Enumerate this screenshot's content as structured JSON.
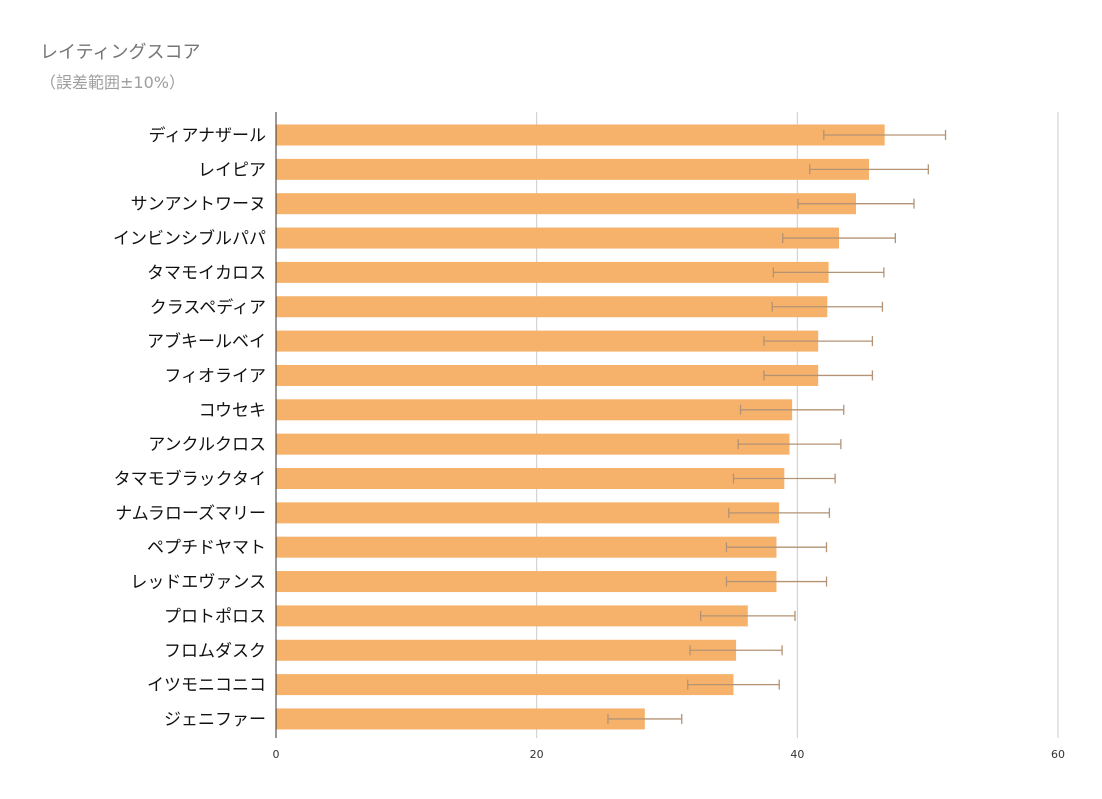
{
  "chart_data": {
    "type": "bar",
    "orientation": "horizontal",
    "title": "レイティングスコア",
    "subtitle": "（誤差範囲±10%）",
    "categories": [
      "ディアナザール",
      "レイピア",
      "サンアントワーヌ",
      "インビンシブルパパ",
      "タマモイカロス",
      "クラスペディア",
      "アブキールベイ",
      "フィオライア",
      "コウセキ",
      "アンクルクロス",
      "タマモブラックタイ",
      "ナムラローズマリー",
      "ペプチドヤマト",
      "レッドエヴァンス",
      "プロトポロス",
      "フロムダスク",
      "イツモニコニコ",
      "ジェニファー"
    ],
    "values": [
      46.7,
      45.5,
      44.5,
      43.2,
      42.4,
      42.3,
      41.6,
      41.6,
      39.6,
      39.4,
      39.0,
      38.6,
      38.4,
      38.4,
      36.2,
      35.3,
      35.1,
      28.3
    ],
    "error_pct": 10,
    "xlim": [
      0,
      60
    ],
    "x_ticks": [
      "0",
      "20",
      "40",
      "60"
    ],
    "grid": true,
    "colors": {
      "bar": "#f6b26b",
      "error": "#b39374",
      "grid": "#cccccc",
      "axis": "#333333"
    }
  }
}
